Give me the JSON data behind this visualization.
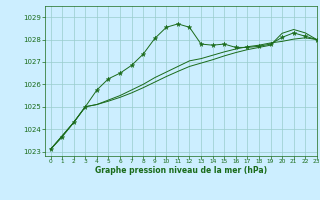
{
  "title": "Graphe pression niveau de la mer (hPa)",
  "bg_color": "#cceeff",
  "grid_color": "#99cccc",
  "line_color": "#1a6b1a",
  "xlim": [
    -0.5,
    23
  ],
  "ylim": [
    1022.8,
    1029.5
  ],
  "yticks": [
    1023,
    1024,
    1025,
    1026,
    1027,
    1028,
    1029
  ],
  "xticks": [
    0,
    1,
    2,
    3,
    4,
    5,
    6,
    7,
    8,
    9,
    10,
    11,
    12,
    13,
    14,
    15,
    16,
    17,
    18,
    19,
    20,
    21,
    22,
    23
  ],
  "series1_x": [
    0,
    1,
    2,
    3,
    4,
    5,
    6,
    7,
    8,
    9,
    10,
    11,
    12,
    13,
    14,
    15,
    16,
    17,
    18,
    19,
    20,
    21,
    22,
    23
  ],
  "series1_y": [
    1023.1,
    1023.65,
    1024.3,
    1025.0,
    1025.75,
    1026.25,
    1026.5,
    1026.85,
    1027.35,
    1028.05,
    1028.55,
    1028.7,
    1028.55,
    1027.8,
    1027.75,
    1027.8,
    1027.65,
    1027.65,
    1027.7,
    1027.8,
    1028.1,
    1028.3,
    1028.15,
    1028.0
  ],
  "series2_x": [
    0,
    2,
    3,
    4,
    5,
    6,
    7,
    8,
    9,
    10,
    11,
    12,
    13,
    14,
    15,
    16,
    17,
    18,
    19,
    20,
    21,
    22,
    23
  ],
  "series2_y": [
    1023.1,
    1024.3,
    1025.0,
    1025.1,
    1025.3,
    1025.5,
    1025.75,
    1026.0,
    1026.3,
    1026.55,
    1026.8,
    1027.05,
    1027.15,
    1027.3,
    1027.45,
    1027.58,
    1027.68,
    1027.75,
    1027.85,
    1027.92,
    1028.02,
    1028.08,
    1028.0
  ],
  "series3_x": [
    0,
    2,
    3,
    4,
    5,
    6,
    7,
    8,
    9,
    10,
    11,
    12,
    13,
    14,
    15,
    16,
    17,
    18,
    19,
    20,
    21,
    22,
    23
  ],
  "series3_y": [
    1023.1,
    1024.3,
    1025.0,
    1025.1,
    1025.25,
    1025.42,
    1025.62,
    1025.85,
    1026.1,
    1026.35,
    1026.58,
    1026.8,
    1026.95,
    1027.1,
    1027.27,
    1027.42,
    1027.55,
    1027.65,
    1027.75,
    1028.28,
    1028.45,
    1028.3,
    1028.0
  ]
}
